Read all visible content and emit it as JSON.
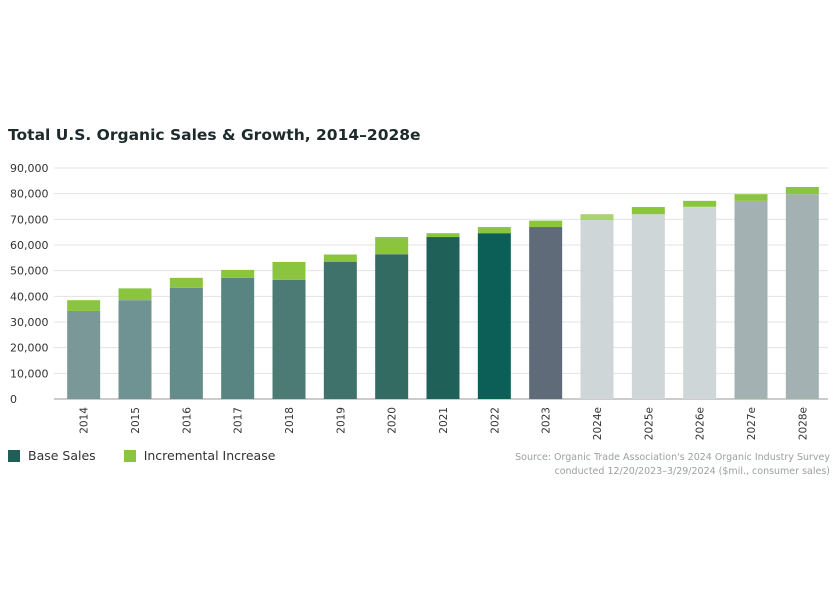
{
  "chart_data": {
    "type": "bar",
    "stacked": true,
    "title": "Total U.S. Organic Sales & Growth, 2014–2028e",
    "categories": [
      "2014",
      "2015",
      "2016",
      "2017",
      "2018",
      "2019",
      "2020",
      "2021",
      "2022",
      "2023",
      "2024e",
      "2025e",
      "2026e",
      "2027e",
      "2028e"
    ],
    "series": [
      {
        "name": "Base Sales",
        "values": [
          34300,
          38500,
          43300,
          47200,
          46400,
          53500,
          56400,
          63100,
          64600,
          67000,
          69700,
          72000,
          74900,
          77200,
          79800
        ]
      },
      {
        "name": "Incremental Increase",
        "values": [
          4200,
          4600,
          3900,
          3100,
          7000,
          2800,
          6700,
          1500,
          2400,
          2500,
          2300,
          2800,
          2300,
          2600,
          2800
        ]
      }
    ],
    "ylim": [
      0,
      90000
    ],
    "yticks": [
      0,
      10000,
      20000,
      30000,
      40000,
      50000,
      60000,
      70000,
      80000,
      90000
    ],
    "ytick_labels": [
      "0",
      "10,000",
      "20,000",
      "30,000",
      "40,000",
      "50,000",
      "60,000",
      "70,000",
      "80,000",
      "90,000"
    ],
    "grid": true,
    "legend_position": "bottom-left",
    "base_colors": [
      "#7a9898",
      "#6f9393",
      "#638c8a",
      "#588582",
      "#4c7b76",
      "#3f726b",
      "#336b63",
      "#1f6059",
      "#0c5f57",
      "#5f6b78",
      "#cfd6d7",
      "#cfd6d7",
      "#cfd6d7",
      "#a3b1b3",
      "#a3b1b3"
    ],
    "increment_colors": [
      "#8bc540",
      "#8bc540",
      "#8bc540",
      "#8bc540",
      "#8bc540",
      "#8bc540",
      "#8bc540",
      "#8bc540",
      "#8bc540",
      "#8bc540",
      "#a9d46d",
      "#8bc540",
      "#8bc540",
      "#8bc540",
      "#8bc540"
    ]
  },
  "legend": {
    "items": [
      {
        "label": "Base Sales",
        "color": "#1f5f57"
      },
      {
        "label": "Incremental Increase",
        "color": "#8bc540"
      }
    ]
  },
  "source": {
    "line1": "Source: Organic Trade Association's 2024 Organic Industry Survey",
    "line2": "conducted 12/20/2023–3/29/2024 ($mil., consumer sales)"
  }
}
